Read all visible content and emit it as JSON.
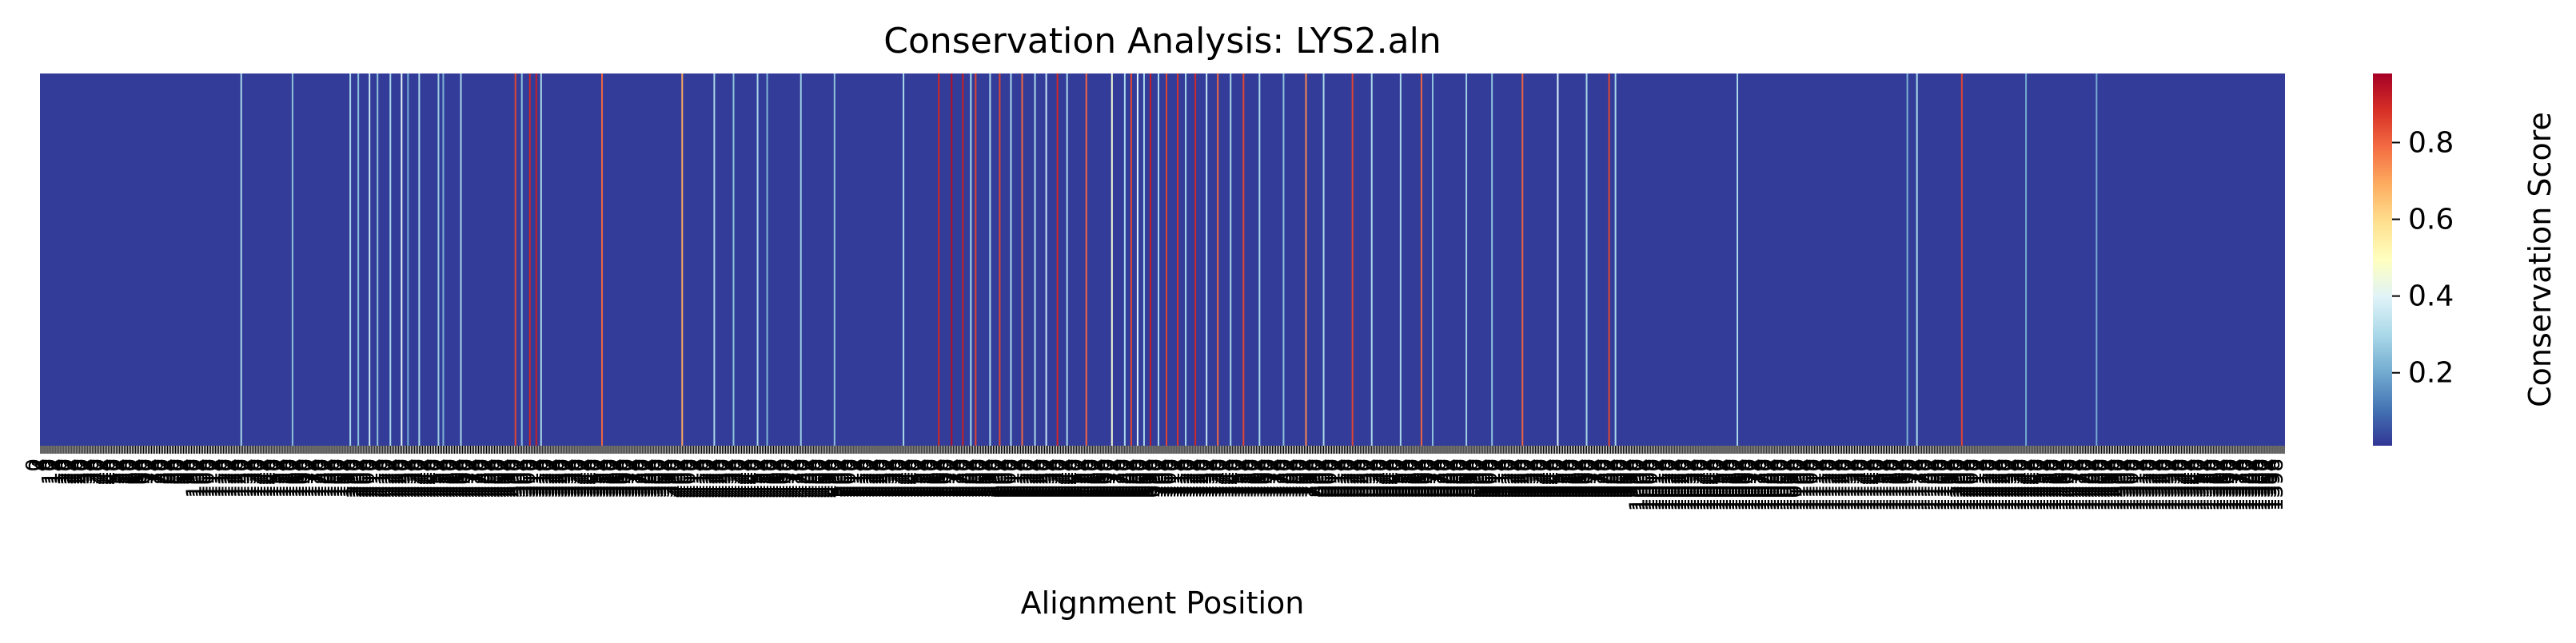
{
  "chart_data": {
    "type": "heatmap",
    "title": "Conservation Analysis: LYS2.aln",
    "xlabel": "Alignment Position",
    "ylabel": "",
    "colorbar": {
      "label": "Conservation Score",
      "colormap": "RdYlBu_r",
      "range": [
        0.01,
        0.98
      ],
      "ticks": [
        0.2,
        0.4,
        0.6,
        0.8
      ],
      "tick_labels": [
        "0.2",
        "0.4",
        "0.6",
        "0.8"
      ]
    },
    "x_range": [
      0,
      1400
    ],
    "x_tick_step": 1,
    "x_tick_labels_legible": false,
    "baseline_score": 0.02,
    "positions": [
      {
        "x": 125,
        "value": 0.3
      },
      {
        "x": 157,
        "value": 0.25
      },
      {
        "x": 193,
        "value": 0.3
      },
      {
        "x": 198,
        "value": 0.25
      },
      {
        "x": 205,
        "value": 0.35
      },
      {
        "x": 210,
        "value": 0.25
      },
      {
        "x": 218,
        "value": 0.3
      },
      {
        "x": 225,
        "value": 0.4
      },
      {
        "x": 229,
        "value": 0.2
      },
      {
        "x": 236,
        "value": 0.3
      },
      {
        "x": 248,
        "value": 0.28
      },
      {
        "x": 251,
        "value": 0.22
      },
      {
        "x": 262,
        "value": 0.3
      },
      {
        "x": 296,
        "value": 0.85
      },
      {
        "x": 300,
        "value": 0.25
      },
      {
        "x": 305,
        "value": 0.9
      },
      {
        "x": 309,
        "value": 0.92
      },
      {
        "x": 312,
        "value": 0.3
      },
      {
        "x": 350,
        "value": 0.8
      },
      {
        "x": 400,
        "value": 0.7
      },
      {
        "x": 420,
        "value": 0.3
      },
      {
        "x": 432,
        "value": 0.25
      },
      {
        "x": 447,
        "value": 0.3
      },
      {
        "x": 453,
        "value": 0.22
      },
      {
        "x": 474,
        "value": 0.28
      },
      {
        "x": 495,
        "value": 0.25
      },
      {
        "x": 538,
        "value": 0.3
      },
      {
        "x": 560,
        "value": 0.9
      },
      {
        "x": 568,
        "value": 0.95
      },
      {
        "x": 575,
        "value": 0.92
      },
      {
        "x": 580,
        "value": 0.3
      },
      {
        "x": 583,
        "value": 0.85
      },
      {
        "x": 592,
        "value": 0.3
      },
      {
        "x": 598,
        "value": 0.85
      },
      {
        "x": 605,
        "value": 0.3
      },
      {
        "x": 612,
        "value": 0.8
      },
      {
        "x": 620,
        "value": 0.3
      },
      {
        "x": 627,
        "value": 0.35
      },
      {
        "x": 634,
        "value": 0.9
      },
      {
        "x": 640,
        "value": 0.3
      },
      {
        "x": 652,
        "value": 0.8
      },
      {
        "x": 668,
        "value": 0.45
      },
      {
        "x": 676,
        "value": 0.3
      },
      {
        "x": 680,
        "value": 0.85
      },
      {
        "x": 684,
        "value": 0.4
      },
      {
        "x": 688,
        "value": 0.3
      },
      {
        "x": 692,
        "value": 0.92
      },
      {
        "x": 697,
        "value": 0.3
      },
      {
        "x": 702,
        "value": 0.85
      },
      {
        "x": 709,
        "value": 0.88
      },
      {
        "x": 714,
        "value": 0.3
      },
      {
        "x": 720,
        "value": 0.9
      },
      {
        "x": 727,
        "value": 0.35
      },
      {
        "x": 734,
        "value": 0.8
      },
      {
        "x": 742,
        "value": 0.3
      },
      {
        "x": 750,
        "value": 0.85
      },
      {
        "x": 760,
        "value": 0.3
      },
      {
        "x": 775,
        "value": 0.25
      },
      {
        "x": 789,
        "value": 0.75
      },
      {
        "x": 800,
        "value": 0.3
      },
      {
        "x": 818,
        "value": 0.85
      },
      {
        "x": 830,
        "value": 0.3
      },
      {
        "x": 848,
        "value": 0.3
      },
      {
        "x": 861,
        "value": 0.8
      },
      {
        "x": 868,
        "value": 0.25
      },
      {
        "x": 889,
        "value": 0.28
      },
      {
        "x": 905,
        "value": 0.25
      },
      {
        "x": 924,
        "value": 0.8
      },
      {
        "x": 946,
        "value": 0.4
      },
      {
        "x": 964,
        "value": 0.3
      },
      {
        "x": 978,
        "value": 0.85
      },
      {
        "x": 982,
        "value": 0.3
      },
      {
        "x": 1058,
        "value": 0.3
      },
      {
        "x": 1164,
        "value": 0.22
      },
      {
        "x": 1170,
        "value": 0.3
      },
      {
        "x": 1198,
        "value": 0.85
      },
      {
        "x": 1238,
        "value": 0.2
      },
      {
        "x": 1282,
        "value": 0.2
      }
    ]
  }
}
